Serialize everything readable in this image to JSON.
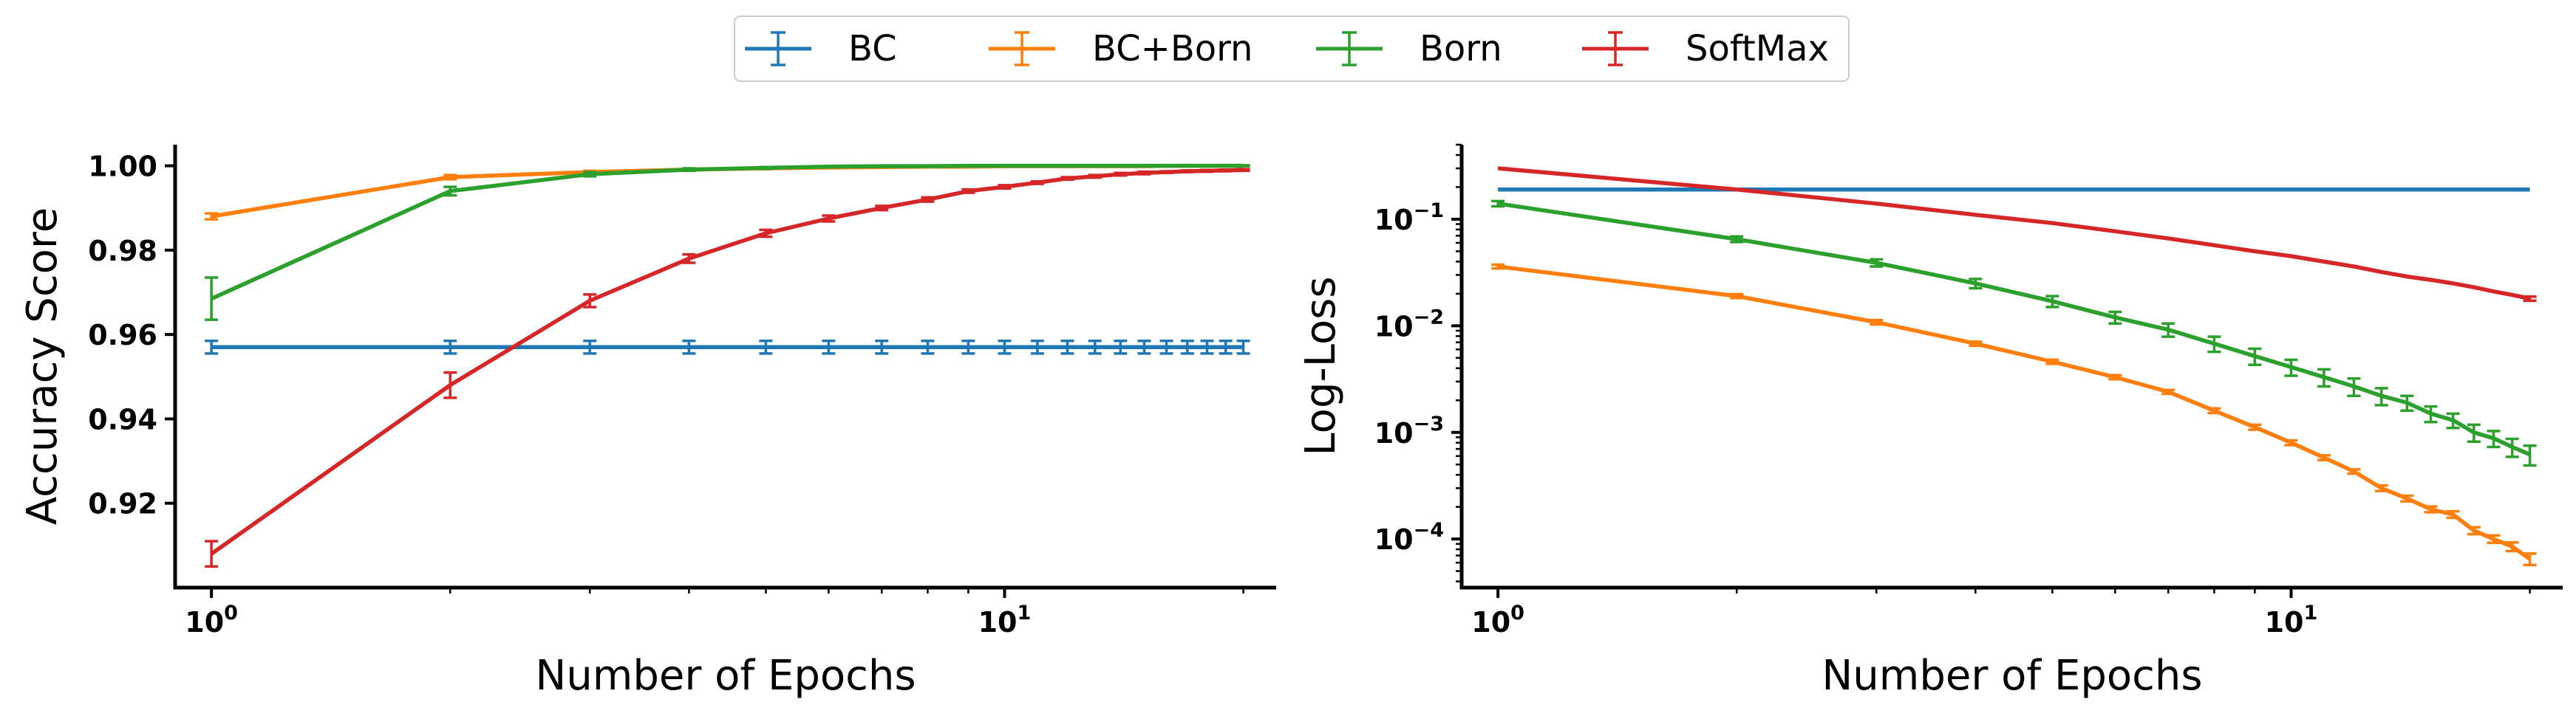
{
  "legend": {
    "entries": [
      {
        "label": "BC",
        "color": "#1f77b4"
      },
      {
        "label": "BC+Born",
        "color": "#ff7f0e"
      },
      {
        "label": "Born",
        "color": "#2ca02c"
      },
      {
        "label": "SoftMax",
        "color": "#d62728"
      }
    ]
  },
  "chart_data": [
    {
      "type": "line",
      "xlabel": "Number of Epochs",
      "ylabel": "Accuracy Score",
      "xscale": "log",
      "yscale": "linear",
      "xlim": [
        0.9,
        22
      ],
      "ylim": [
        0.9,
        1.005
      ],
      "x_ticks": [
        {
          "base": "10",
          "exp": "0",
          "value": 1
        },
        {
          "base": "10",
          "exp": "1",
          "value": 10
        }
      ],
      "y_ticks": [
        {
          "label": "0.92",
          "value": 0.92
        },
        {
          "label": "0.94",
          "value": 0.94
        },
        {
          "label": "0.96",
          "value": 0.96
        },
        {
          "label": "0.98",
          "value": 0.98
        },
        {
          "label": "1.00",
          "value": 1.0
        }
      ],
      "x": [
        1,
        2,
        3,
        4,
        5,
        6,
        7,
        8,
        9,
        10,
        11,
        12,
        13,
        14,
        15,
        16,
        17,
        18,
        19,
        20
      ],
      "series": [
        {
          "name": "BC",
          "color": "#1f77b4",
          "values": [
            0.957,
            0.957,
            0.957,
            0.957,
            0.957,
            0.957,
            0.957,
            0.957,
            0.957,
            0.957,
            0.957,
            0.957,
            0.957,
            0.957,
            0.957,
            0.957,
            0.957,
            0.957,
            0.957,
            0.957
          ],
          "err": [
            0.0015,
            0.0015,
            0.0015,
            0.0015,
            0.0015,
            0.0015,
            0.0015,
            0.0015,
            0.0015,
            0.0015,
            0.0015,
            0.0015,
            0.0015,
            0.0015,
            0.0015,
            0.0015,
            0.0015,
            0.0015,
            0.0015,
            0.0015
          ]
        },
        {
          "name": "BC+Born",
          "color": "#ff7f0e",
          "values": [
            0.988,
            0.9973,
            0.9985,
            0.9991,
            0.9994,
            0.9996,
            0.9997,
            0.9998,
            0.9998,
            0.9999,
            0.9999,
            0.9999,
            0.9999,
            0.9999,
            0.9999,
            1.0,
            1.0,
            1.0,
            1.0,
            1.0
          ],
          "err": [
            0.0007,
            0.0005,
            0.0003,
            0.0002,
            0.0002,
            0.0001,
            0.0001,
            0.0001,
            0.0001,
            0.0001,
            0.0001,
            0.0001,
            0.0001,
            0.0001,
            0.0001,
            0.0001,
            0.0001,
            0.0001,
            0.0001,
            0.0001
          ]
        },
        {
          "name": "Born",
          "color": "#2ca02c",
          "values": [
            0.9685,
            0.994,
            0.998,
            0.9991,
            0.9995,
            0.9998,
            0.9999,
            0.9999,
            1.0,
            1.0,
            1.0,
            1.0,
            1.0,
            1.0,
            1.0,
            1.0,
            1.0,
            1.0,
            1.0,
            1.0
          ],
          "err": [
            0.005,
            0.001,
            0.0005,
            0.0003,
            0.0002,
            0.0001,
            0.0001,
            0.0001,
            0.0001,
            0.0001,
            0.0001,
            0.0001,
            0.0001,
            0.0001,
            0.0001,
            0.0001,
            0.0001,
            0.0001,
            0.0001,
            0.0001
          ]
        },
        {
          "name": "SoftMax",
          "color": "#d62728",
          "values": [
            0.908,
            0.948,
            0.968,
            0.978,
            0.984,
            0.9875,
            0.99,
            0.992,
            0.994,
            0.995,
            0.996,
            0.997,
            0.9975,
            0.998,
            0.9983,
            0.9985,
            0.9987,
            0.9988,
            0.9989,
            0.999
          ],
          "err": [
            0.003,
            0.003,
            0.0015,
            0.001,
            0.0008,
            0.0007,
            0.0005,
            0.0005,
            0.0004,
            0.0004,
            0.0003,
            0.0003,
            0.0003,
            0.0003,
            0.0003,
            0.0002,
            0.0002,
            0.0002,
            0.0002,
            0.0002
          ]
        }
      ]
    },
    {
      "type": "line",
      "xlabel": "Number of Epochs",
      "ylabel": "Log-Loss",
      "xscale": "log",
      "yscale": "log",
      "xlim": [
        0.9,
        22
      ],
      "ylim": [
        3.5e-05,
        0.5
      ],
      "x_ticks": [
        {
          "base": "10",
          "exp": "0",
          "value": 1
        },
        {
          "base": "10",
          "exp": "1",
          "value": 10
        }
      ],
      "y_ticks": [
        {
          "base": "10",
          "exp": "−4",
          "value": 0.0001
        },
        {
          "base": "10",
          "exp": "−3",
          "value": 0.001
        },
        {
          "base": "10",
          "exp": "−2",
          "value": 0.01
        },
        {
          "base": "10",
          "exp": "−1",
          "value": 0.1
        }
      ],
      "x": [
        1,
        2,
        3,
        4,
        5,
        6,
        7,
        8,
        9,
        10,
        11,
        12,
        13,
        14,
        15,
        16,
        17,
        18,
        19,
        20
      ],
      "series": [
        {
          "name": "BC",
          "color": "#1f77b4",
          "values": [
            0.19,
            0.19,
            0.19,
            0.19,
            0.19,
            0.19,
            0.19,
            0.19,
            0.19,
            0.19,
            0.19,
            0.19,
            0.19,
            0.19,
            0.19,
            0.19,
            0.19,
            0.19,
            0.19,
            0.19
          ],
          "err": [
            0,
            0,
            0,
            0,
            0,
            0,
            0,
            0,
            0,
            0,
            0,
            0,
            0,
            0,
            0,
            0,
            0,
            0,
            0,
            0
          ]
        },
        {
          "name": "BC+Born",
          "color": "#ff7f0e",
          "values": [
            0.036,
            0.019,
            0.0108,
            0.0068,
            0.0046,
            0.0033,
            0.0024,
            0.0016,
            0.00112,
            0.0008,
            0.00058,
            0.00043,
            0.0003,
            0.00024,
            0.00019,
            0.00017,
            0.00012,
            0.0001,
            8.5e-05,
            6.5e-05
          ],
          "err": [
            0.0015,
            0.0008,
            0.0005,
            0.0003,
            0.0002,
            0.00015,
            0.0001,
            8e-05,
            6e-05,
            4e-05,
            3e-05,
            2e-05,
            1.8e-05,
            1.5e-05,
            1.2e-05,
            1.2e-05,
            9e-06,
            8e-06,
            8e-06,
            8e-06
          ]
        },
        {
          "name": "Born",
          "color": "#2ca02c",
          "values": [
            0.14,
            0.065,
            0.039,
            0.025,
            0.017,
            0.012,
            0.0092,
            0.0068,
            0.0052,
            0.0041,
            0.0033,
            0.0027,
            0.0022,
            0.0019,
            0.0015,
            0.0013,
            0.001,
            0.00088,
            0.00073,
            0.00062
          ],
          "err": [
            0.008,
            0.004,
            0.003,
            0.0025,
            0.002,
            0.0015,
            0.0013,
            0.0011,
            0.0009,
            0.0007,
            0.0006,
            0.0005,
            0.0004,
            0.0003,
            0.00025,
            0.0002,
            0.00018,
            0.00015,
            0.00014,
            0.00013
          ]
        },
        {
          "name": "SoftMax",
          "color": "#d62728",
          "values": [
            0.3,
            0.19,
            0.14,
            0.11,
            0.092,
            0.077,
            0.066,
            0.057,
            0.05,
            0.045,
            0.04,
            0.036,
            0.032,
            0.029,
            0.027,
            0.025,
            0.023,
            0.021,
            0.0195,
            0.018
          ],
          "err": [
            0,
            0,
            0,
            0,
            0,
            0,
            0,
            0,
            0,
            0,
            0,
            0,
            0,
            0,
            0,
            0,
            0,
            0,
            0,
            0.0008
          ]
        }
      ]
    }
  ]
}
